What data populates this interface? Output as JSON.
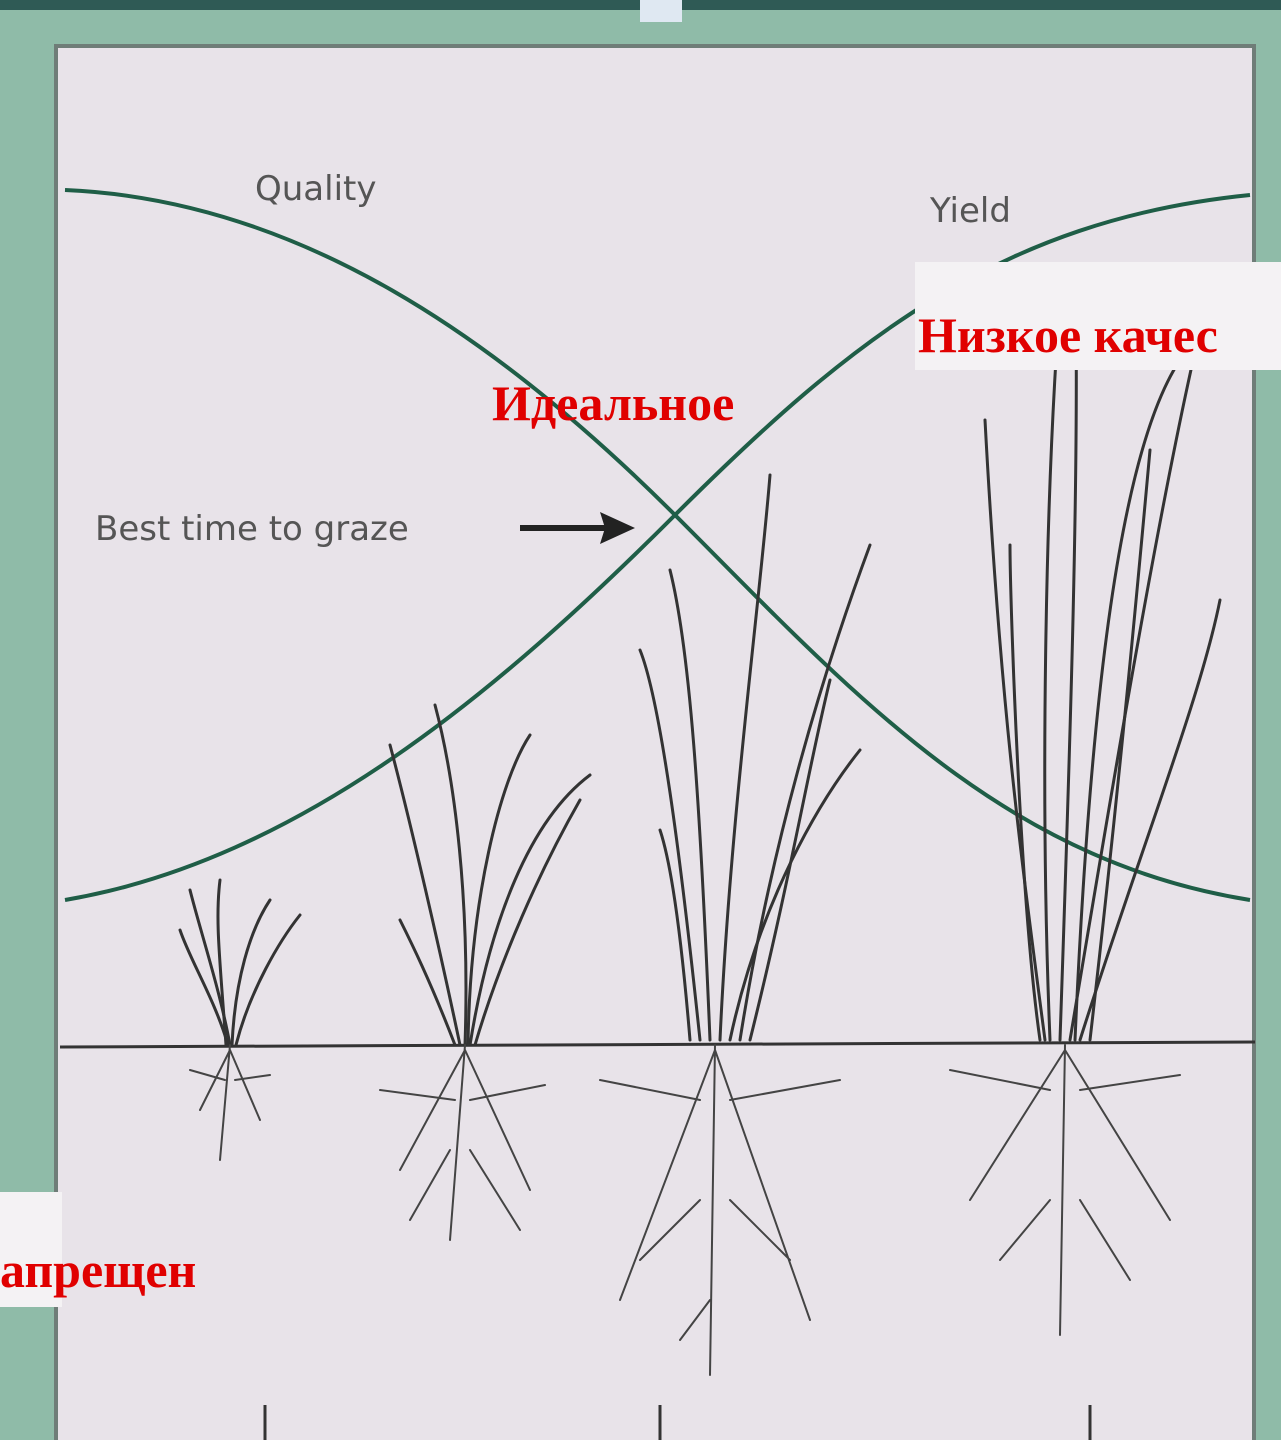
{
  "labels": {
    "quality": "Quality",
    "yield": "Yield",
    "best_time": "Best time to graze"
  },
  "overlay": {
    "low_quality": "Низкое качес",
    "ideal": "Идеальное",
    "forbidden": "апрещен"
  }
}
